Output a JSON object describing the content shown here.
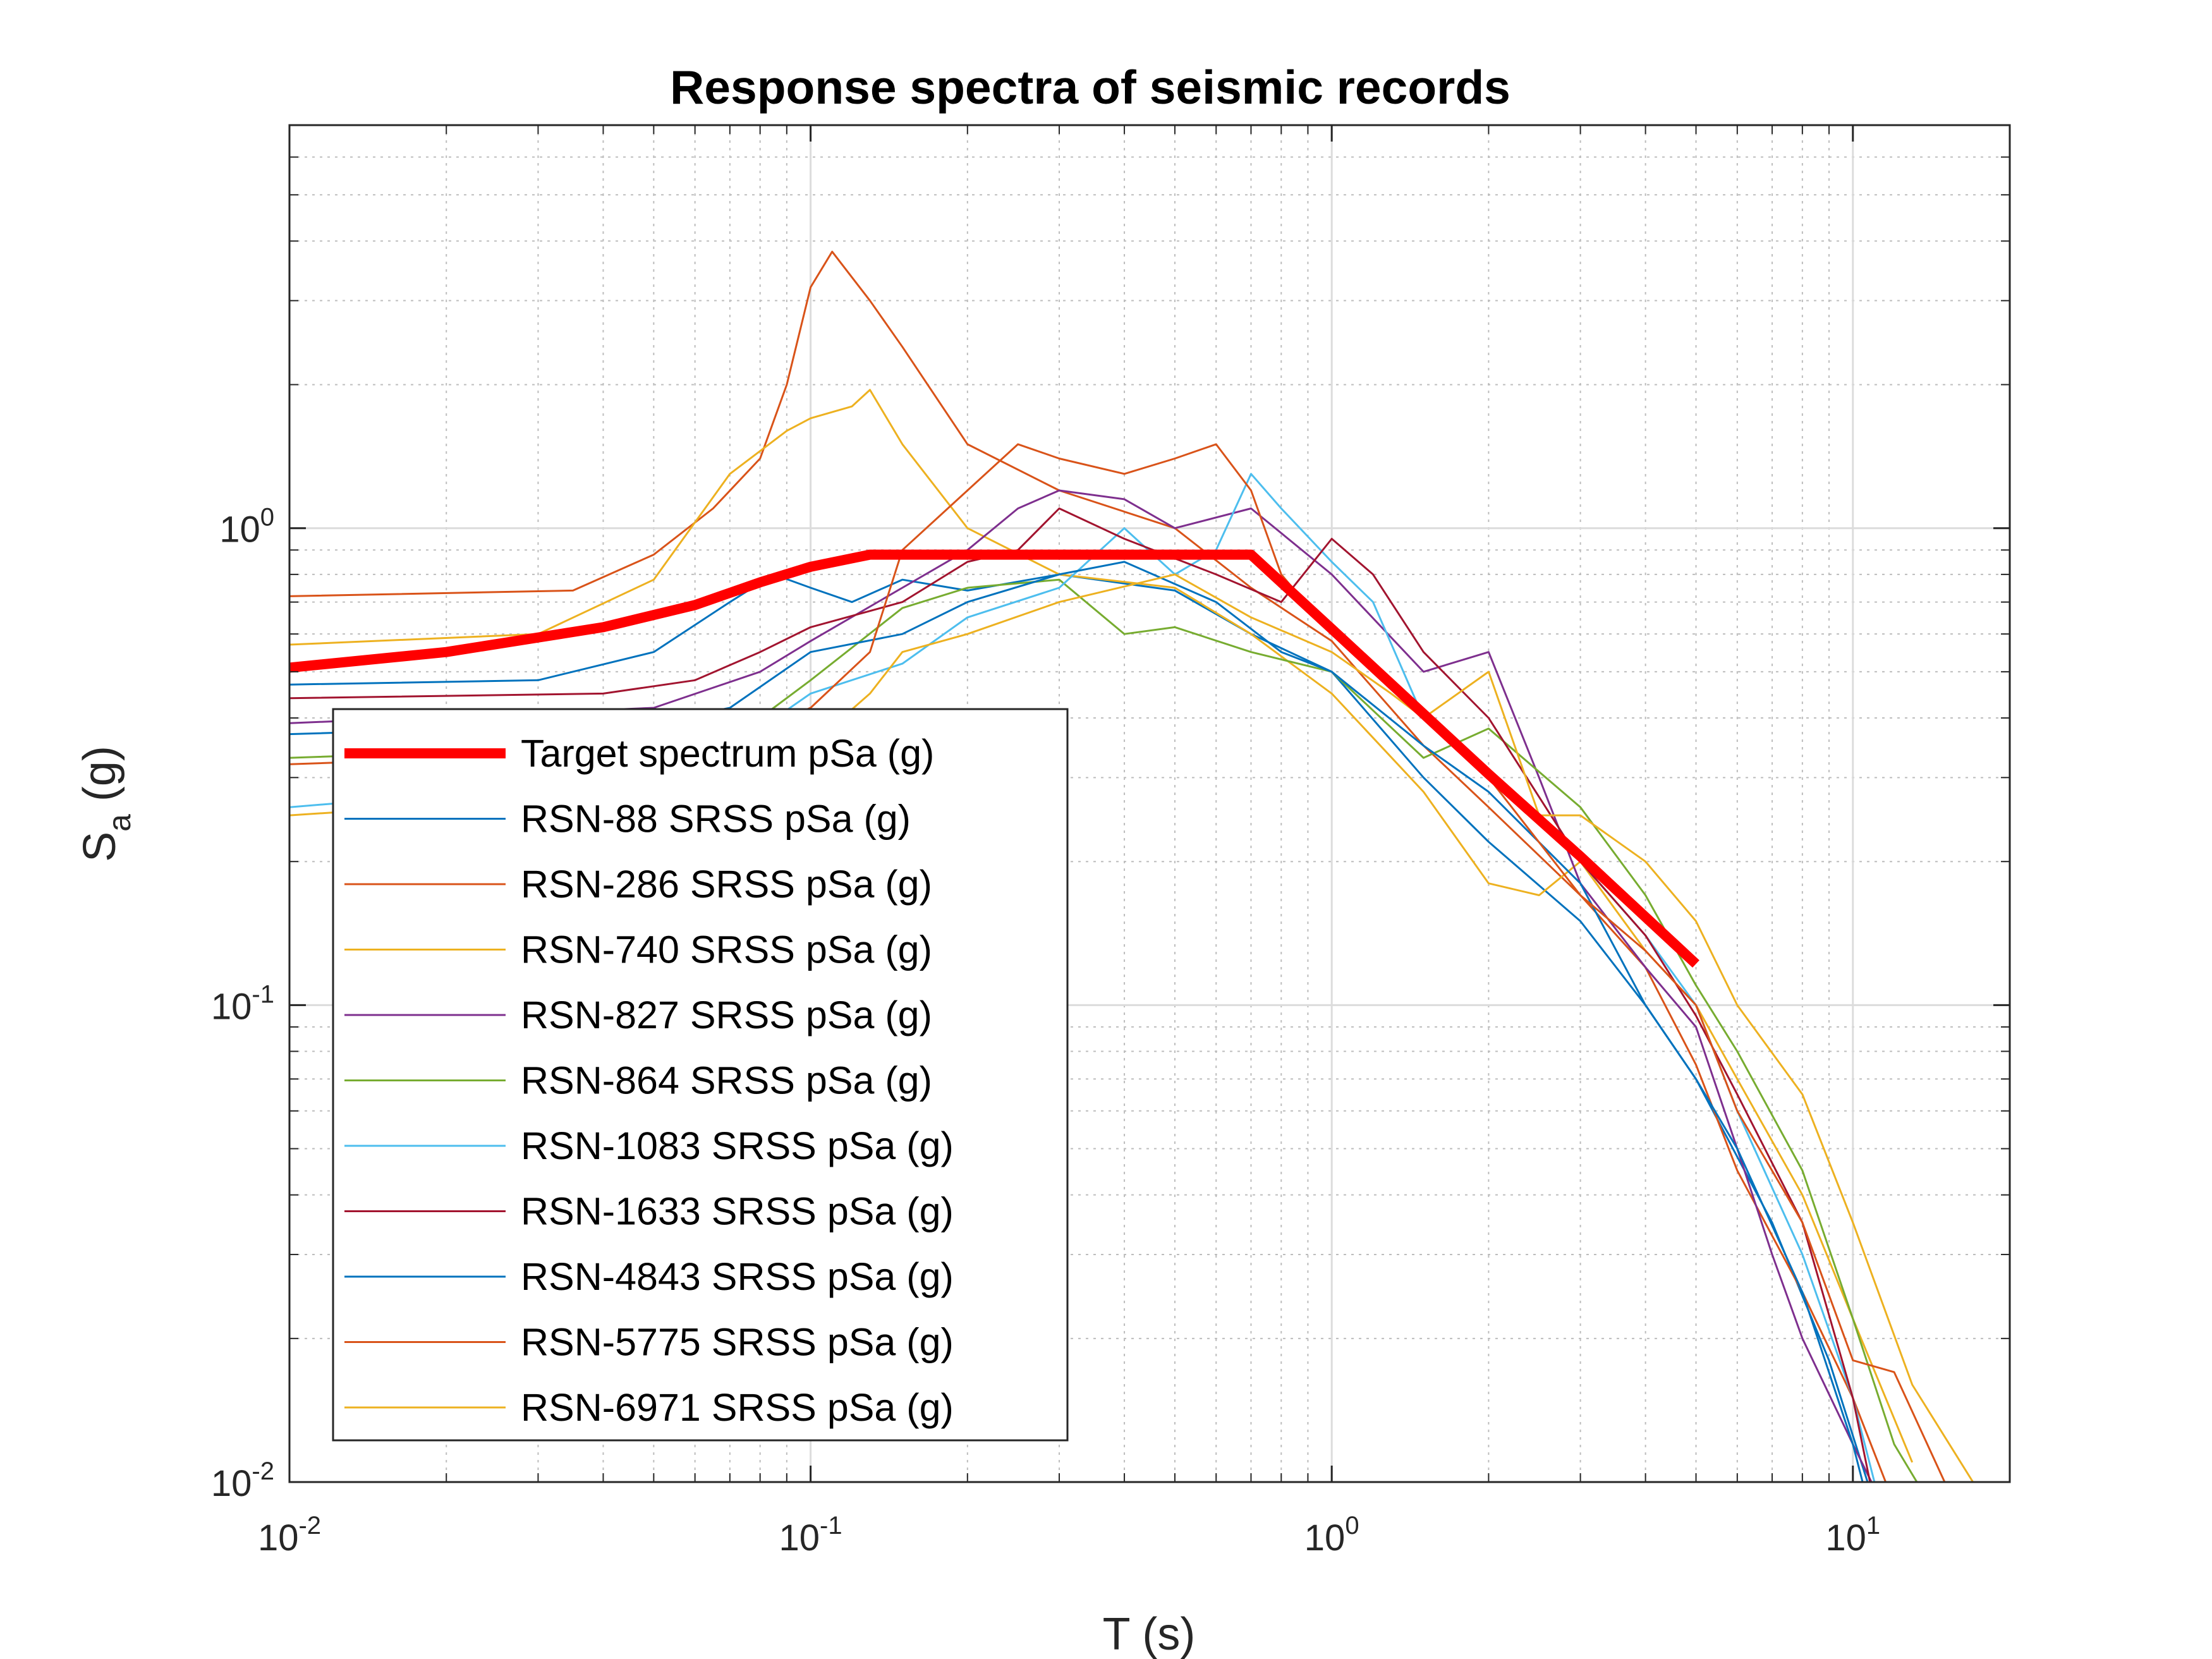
{
  "chart_data": {
    "type": "line",
    "title": "Response spectra of seismic records",
    "xlabel": "T (s)",
    "ylabel": {
      "main": "S",
      "subscript": "a",
      "suffix": " (g)"
    },
    "xscale": "log",
    "yscale": "log",
    "xlim": [
      0.01,
      20
    ],
    "ylim": [
      0.01,
      7
    ],
    "grid": true,
    "minor_grid": true,
    "legend_position": "lower-left",
    "x_ticks": [
      {
        "value": 0.01,
        "base": "10",
        "exp": "-2"
      },
      {
        "value": 0.1,
        "base": "10",
        "exp": "-1"
      },
      {
        "value": 1,
        "base": "10",
        "exp": "0"
      },
      {
        "value": 10,
        "base": "10",
        "exp": "1"
      }
    ],
    "y_ticks": [
      {
        "value": 0.01,
        "base": "10",
        "exp": "-2"
      },
      {
        "value": 0.1,
        "base": "10",
        "exp": "-1"
      },
      {
        "value": 1,
        "base": "10",
        "exp": "0"
      }
    ],
    "series": [
      {
        "name": "Target spectrum pSa (g)",
        "color": "#ff0000",
        "width": 16,
        "points": [
          [
            0.01,
            0.51
          ],
          [
            0.02,
            0.55
          ],
          [
            0.04,
            0.62
          ],
          [
            0.06,
            0.69
          ],
          [
            0.08,
            0.77
          ],
          [
            0.1,
            0.83
          ],
          [
            0.13,
            0.88
          ],
          [
            0.3,
            0.88
          ],
          [
            0.5,
            0.88
          ],
          [
            0.7,
            0.88
          ],
          [
            1,
            0.615
          ],
          [
            2,
            0.305
          ],
          [
            3,
            0.205
          ],
          [
            4,
            0.153
          ],
          [
            5,
            0.122
          ]
        ]
      },
      {
        "name": "RSN-88 SRSS pSa (g)",
        "color": "#0072bd",
        "width": 3,
        "points": [
          [
            0.01,
            0.47
          ],
          [
            0.03,
            0.48
          ],
          [
            0.05,
            0.55
          ],
          [
            0.07,
            0.7
          ],
          [
            0.085,
            0.8
          ],
          [
            0.1,
            0.75
          ],
          [
            0.12,
            0.7
          ],
          [
            0.15,
            0.78
          ],
          [
            0.2,
            0.74
          ],
          [
            0.3,
            0.8
          ],
          [
            0.5,
            0.74
          ],
          [
            0.7,
            0.6
          ],
          [
            1,
            0.5
          ],
          [
            1.5,
            0.3
          ],
          [
            2,
            0.22
          ],
          [
            3,
            0.15
          ],
          [
            4,
            0.1
          ],
          [
            5,
            0.07
          ],
          [
            7,
            0.035
          ],
          [
            9,
            0.018
          ],
          [
            11,
            0.009
          ]
        ]
      },
      {
        "name": "RSN-286 SRSS pSa (g)",
        "color": "#d95319",
        "width": 3,
        "points": [
          [
            0.01,
            0.72
          ],
          [
            0.035,
            0.74
          ],
          [
            0.05,
            0.88
          ],
          [
            0.065,
            1.1
          ],
          [
            0.08,
            1.4
          ],
          [
            0.09,
            2.0
          ],
          [
            0.1,
            3.2
          ],
          [
            0.11,
            3.8
          ],
          [
            0.13,
            3.0
          ],
          [
            0.15,
            2.4
          ],
          [
            0.2,
            1.5
          ],
          [
            0.3,
            1.2
          ],
          [
            0.5,
            1.0
          ],
          [
            0.7,
            0.75
          ],
          [
            1,
            0.58
          ],
          [
            1.5,
            0.35
          ],
          [
            2,
            0.26
          ],
          [
            3,
            0.17
          ],
          [
            4,
            0.12
          ],
          [
            5,
            0.075
          ],
          [
            6,
            0.045
          ],
          [
            8,
            0.025
          ],
          [
            10,
            0.015
          ],
          [
            12,
            0.009
          ]
        ]
      },
      {
        "name": "RSN-740 SRSS pSa (g)",
        "color": "#edb120",
        "width": 3,
        "points": [
          [
            0.01,
            0.57
          ],
          [
            0.03,
            0.6
          ],
          [
            0.05,
            0.78
          ],
          [
            0.07,
            1.3
          ],
          [
            0.09,
            1.6
          ],
          [
            0.1,
            1.7
          ],
          [
            0.12,
            1.8
          ],
          [
            0.13,
            1.95
          ],
          [
            0.15,
            1.5
          ],
          [
            0.2,
            1.0
          ],
          [
            0.3,
            0.8
          ],
          [
            0.5,
            0.75
          ],
          [
            0.7,
            0.6
          ],
          [
            1,
            0.45
          ],
          [
            1.5,
            0.28
          ],
          [
            2,
            0.18
          ],
          [
            2.5,
            0.17
          ],
          [
            3,
            0.2
          ],
          [
            4,
            0.13
          ],
          [
            5,
            0.1
          ],
          [
            6,
            0.07
          ],
          [
            8,
            0.04
          ],
          [
            10,
            0.022
          ],
          [
            13,
            0.011
          ]
        ]
      },
      {
        "name": "RSN-827 SRSS pSa (g)",
        "color": "#7e2f8e",
        "width": 3,
        "points": [
          [
            0.01,
            0.39
          ],
          [
            0.05,
            0.42
          ],
          [
            0.08,
            0.5
          ],
          [
            0.1,
            0.58
          ],
          [
            0.15,
            0.75
          ],
          [
            0.2,
            0.9
          ],
          [
            0.25,
            1.1
          ],
          [
            0.3,
            1.2
          ],
          [
            0.4,
            1.15
          ],
          [
            0.5,
            1.0
          ],
          [
            0.7,
            1.1
          ],
          [
            1,
            0.8
          ],
          [
            1.5,
            0.5
          ],
          [
            2,
            0.55
          ],
          [
            2.5,
            0.3
          ],
          [
            3,
            0.18
          ],
          [
            4,
            0.12
          ],
          [
            5,
            0.09
          ],
          [
            6,
            0.05
          ],
          [
            7,
            0.03
          ],
          [
            8,
            0.02
          ],
          [
            10,
            0.012
          ],
          [
            12,
            0.008
          ]
        ]
      },
      {
        "name": "RSN-864 SRSS pSa (g)",
        "color": "#77ac30",
        "width": 3,
        "points": [
          [
            0.01,
            0.33
          ],
          [
            0.05,
            0.35
          ],
          [
            0.08,
            0.4
          ],
          [
            0.1,
            0.48
          ],
          [
            0.15,
            0.68
          ],
          [
            0.2,
            0.75
          ],
          [
            0.3,
            0.78
          ],
          [
            0.4,
            0.6
          ],
          [
            0.5,
            0.62
          ],
          [
            0.7,
            0.55
          ],
          [
            1,
            0.5
          ],
          [
            1.5,
            0.33
          ],
          [
            2,
            0.38
          ],
          [
            3,
            0.26
          ],
          [
            4,
            0.17
          ],
          [
            5,
            0.11
          ],
          [
            6,
            0.08
          ],
          [
            8,
            0.045
          ],
          [
            10,
            0.022
          ],
          [
            12,
            0.012
          ],
          [
            15,
            0.008
          ]
        ]
      },
      {
        "name": "RSN-1083 SRSS pSa (g)",
        "color": "#4dbeee",
        "width": 3,
        "points": [
          [
            0.01,
            0.26
          ],
          [
            0.05,
            0.3
          ],
          [
            0.08,
            0.38
          ],
          [
            0.1,
            0.45
          ],
          [
            0.15,
            0.52
          ],
          [
            0.2,
            0.65
          ],
          [
            0.3,
            0.75
          ],
          [
            0.4,
            1.0
          ],
          [
            0.5,
            0.8
          ],
          [
            0.6,
            0.9
          ],
          [
            0.7,
            1.3
          ],
          [
            0.8,
            1.1
          ],
          [
            1,
            0.85
          ],
          [
            1.2,
            0.7
          ],
          [
            1.5,
            0.4
          ],
          [
            2,
            0.3
          ],
          [
            3,
            0.2
          ],
          [
            4,
            0.14
          ],
          [
            5,
            0.1
          ],
          [
            6,
            0.06
          ],
          [
            8,
            0.03
          ],
          [
            10,
            0.015
          ],
          [
            11,
            0.01
          ]
        ]
      },
      {
        "name": "RSN-1633 SRSS pSa (g)",
        "color": "#a2142f",
        "width": 3,
        "points": [
          [
            0.01,
            0.44
          ],
          [
            0.04,
            0.45
          ],
          [
            0.06,
            0.48
          ],
          [
            0.08,
            0.55
          ],
          [
            0.1,
            0.62
          ],
          [
            0.15,
            0.7
          ],
          [
            0.2,
            0.85
          ],
          [
            0.25,
            0.9
          ],
          [
            0.3,
            1.1
          ],
          [
            0.4,
            0.95
          ],
          [
            0.6,
            0.8
          ],
          [
            0.8,
            0.7
          ],
          [
            1,
            0.95
          ],
          [
            1.2,
            0.8
          ],
          [
            1.5,
            0.55
          ],
          [
            2,
            0.4
          ],
          [
            3,
            0.2
          ],
          [
            4,
            0.14
          ],
          [
            5,
            0.095
          ],
          [
            6,
            0.065
          ],
          [
            8,
            0.035
          ],
          [
            10,
            0.015
          ],
          [
            11,
            0.009
          ]
        ]
      },
      {
        "name": "RSN-4843 SRSS pSa (g)",
        "color": "#0072bd",
        "width": 3,
        "points": [
          [
            0.01,
            0.37
          ],
          [
            0.05,
            0.39
          ],
          [
            0.07,
            0.42
          ],
          [
            0.1,
            0.55
          ],
          [
            0.15,
            0.6
          ],
          [
            0.2,
            0.7
          ],
          [
            0.3,
            0.8
          ],
          [
            0.4,
            0.85
          ],
          [
            0.6,
            0.7
          ],
          [
            0.8,
            0.55
          ],
          [
            1,
            0.5
          ],
          [
            1.5,
            0.35
          ],
          [
            2,
            0.28
          ],
          [
            3,
            0.18
          ],
          [
            4,
            0.1
          ],
          [
            5,
            0.07
          ],
          [
            6,
            0.05
          ],
          [
            8,
            0.025
          ],
          [
            10,
            0.012
          ],
          [
            11,
            0.008
          ]
        ]
      },
      {
        "name": "RSN-5775 SRSS pSa (g)",
        "color": "#d95319",
        "width": 3,
        "points": [
          [
            0.01,
            0.32
          ],
          [
            0.05,
            0.34
          ],
          [
            0.08,
            0.38
          ],
          [
            0.1,
            0.42
          ],
          [
            0.13,
            0.55
          ],
          [
            0.15,
            0.9
          ],
          [
            0.2,
            1.2
          ],
          [
            0.25,
            1.5
          ],
          [
            0.3,
            1.4
          ],
          [
            0.4,
            1.3
          ],
          [
            0.5,
            1.4
          ],
          [
            0.6,
            1.5
          ],
          [
            0.7,
            1.2
          ],
          [
            0.8,
            0.8
          ],
          [
            1,
            0.6
          ],
          [
            1.5,
            0.4
          ],
          [
            2,
            0.3
          ],
          [
            3,
            0.17
          ],
          [
            4,
            0.13
          ],
          [
            5,
            0.1
          ],
          [
            6,
            0.06
          ],
          [
            8,
            0.035
          ],
          [
            10,
            0.018
          ],
          [
            12,
            0.017
          ],
          [
            15,
            0.01
          ],
          [
            18,
            0.008
          ]
        ]
      },
      {
        "name": "RSN-6971 SRSS pSa (g)",
        "color": "#edb120",
        "width": 3,
        "points": [
          [
            0.01,
            0.25
          ],
          [
            0.05,
            0.28
          ],
          [
            0.08,
            0.3
          ],
          [
            0.1,
            0.35
          ],
          [
            0.13,
            0.45
          ],
          [
            0.15,
            0.55
          ],
          [
            0.2,
            0.6
          ],
          [
            0.3,
            0.7
          ],
          [
            0.5,
            0.8
          ],
          [
            0.7,
            0.65
          ],
          [
            1,
            0.55
          ],
          [
            1.3,
            0.45
          ],
          [
            1.5,
            0.4
          ],
          [
            2,
            0.5
          ],
          [
            2.5,
            0.25
          ],
          [
            3,
            0.25
          ],
          [
            4,
            0.2
          ],
          [
            5,
            0.15
          ],
          [
            6,
            0.1
          ],
          [
            8,
            0.065
          ],
          [
            10,
            0.035
          ],
          [
            13,
            0.016
          ],
          [
            17,
            0.01
          ],
          [
            20,
            0.008
          ]
        ]
      }
    ]
  }
}
